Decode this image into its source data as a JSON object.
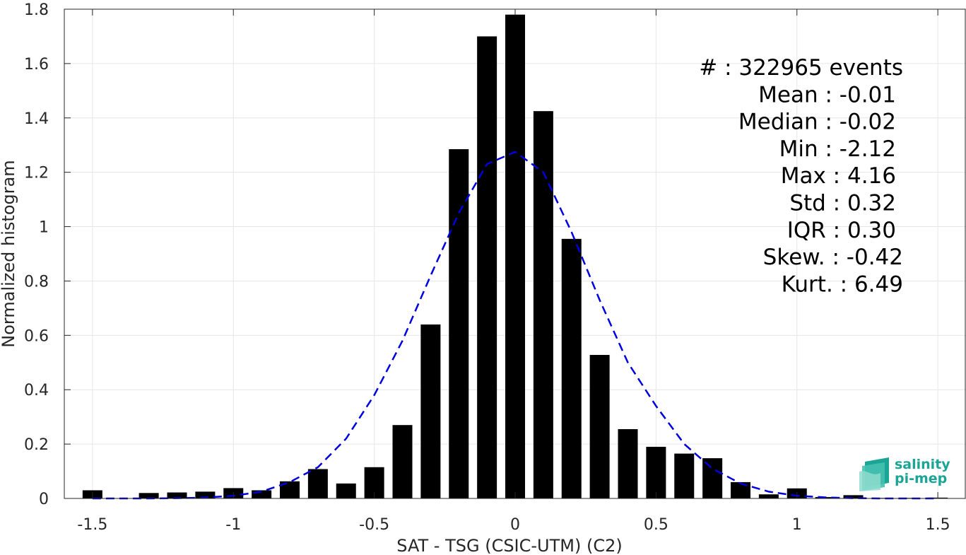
{
  "chart_data": {
    "type": "bar",
    "xlabel": "SAT - TSG (CSIC-UTM) (C2)",
    "ylabel": "Normalized histogram",
    "xlim": [
      -1.6,
      1.6
    ],
    "ylim": [
      0,
      1.8
    ],
    "xticks": [
      -1.5,
      -1,
      -0.5,
      0,
      0.5,
      1,
      1.5
    ],
    "xtick_labels": [
      "-1.5",
      "-1",
      "-0.5",
      "0",
      "0.5",
      "1",
      "1.5"
    ],
    "yticks": [
      0,
      0.2,
      0.4,
      0.6,
      0.8,
      1,
      1.2,
      1.4,
      1.6,
      1.8
    ],
    "ytick_labels": [
      "0",
      "0.2",
      "0.4",
      "0.6",
      "0.8",
      "1",
      "1.2",
      "1.4",
      "1.6",
      "1.8"
    ],
    "grid": true,
    "bar_color": "#000000",
    "bars": {
      "x": [
        -1.5,
        -1.4,
        -1.3,
        -1.2,
        -1.1,
        -1.0,
        -0.9,
        -0.8,
        -0.7,
        -0.6,
        -0.5,
        -0.4,
        -0.3,
        -0.2,
        -0.1,
        0.0,
        0.1,
        0.2,
        0.3,
        0.4,
        0.5,
        0.6,
        0.7,
        0.8,
        0.9,
        1.0,
        1.1,
        1.2,
        1.3,
        1.4,
        1.5
      ],
      "values": [
        0.03,
        0.0,
        0.02,
        0.022,
        0.025,
        0.038,
        0.03,
        0.063,
        0.108,
        0.055,
        0.115,
        0.27,
        0.64,
        1.285,
        1.7,
        1.78,
        1.425,
        0.955,
        0.528,
        0.255,
        0.19,
        0.165,
        0.148,
        0.06,
        0.015,
        0.037,
        0.005,
        0.012,
        0.002,
        0.002,
        0.003
      ]
    },
    "fit_curve": {
      "style": "dashed",
      "color": "#0000dd",
      "x": [
        -1.5,
        -1.4,
        -1.3,
        -1.2,
        -1.1,
        -1.0,
        -0.9,
        -0.8,
        -0.7,
        -0.6,
        -0.5,
        -0.4,
        -0.3,
        -0.2,
        -0.1,
        0.0,
        0.1,
        0.2,
        0.3,
        0.4,
        0.5,
        0.6,
        0.7,
        0.8,
        0.9,
        1.0,
        1.1,
        1.2,
        1.3,
        1.4,
        1.5
      ],
      "y": [
        0.0,
        0.0,
        0.0,
        0.001,
        0.003,
        0.01,
        0.025,
        0.06,
        0.115,
        0.22,
        0.38,
        0.58,
        0.82,
        1.05,
        1.23,
        1.275,
        1.2,
        0.98,
        0.73,
        0.5,
        0.34,
        0.2,
        0.11,
        0.055,
        0.025,
        0.01,
        0.004,
        0.001,
        0.0,
        0.0,
        0.0
      ]
    },
    "stats": [
      "#  : 322965 events",
      "Mean : -0.01",
      "Median : -0.02",
      "Min : -2.12",
      "Max : 4.16",
      "Std : 0.32",
      "IQR : 0.30",
      "Skew. : -0.42",
      "Kurt. : 6.49"
    ]
  },
  "logo": {
    "line1": "salinity",
    "line2": "pi-mep",
    "color": "#1aa596"
  }
}
